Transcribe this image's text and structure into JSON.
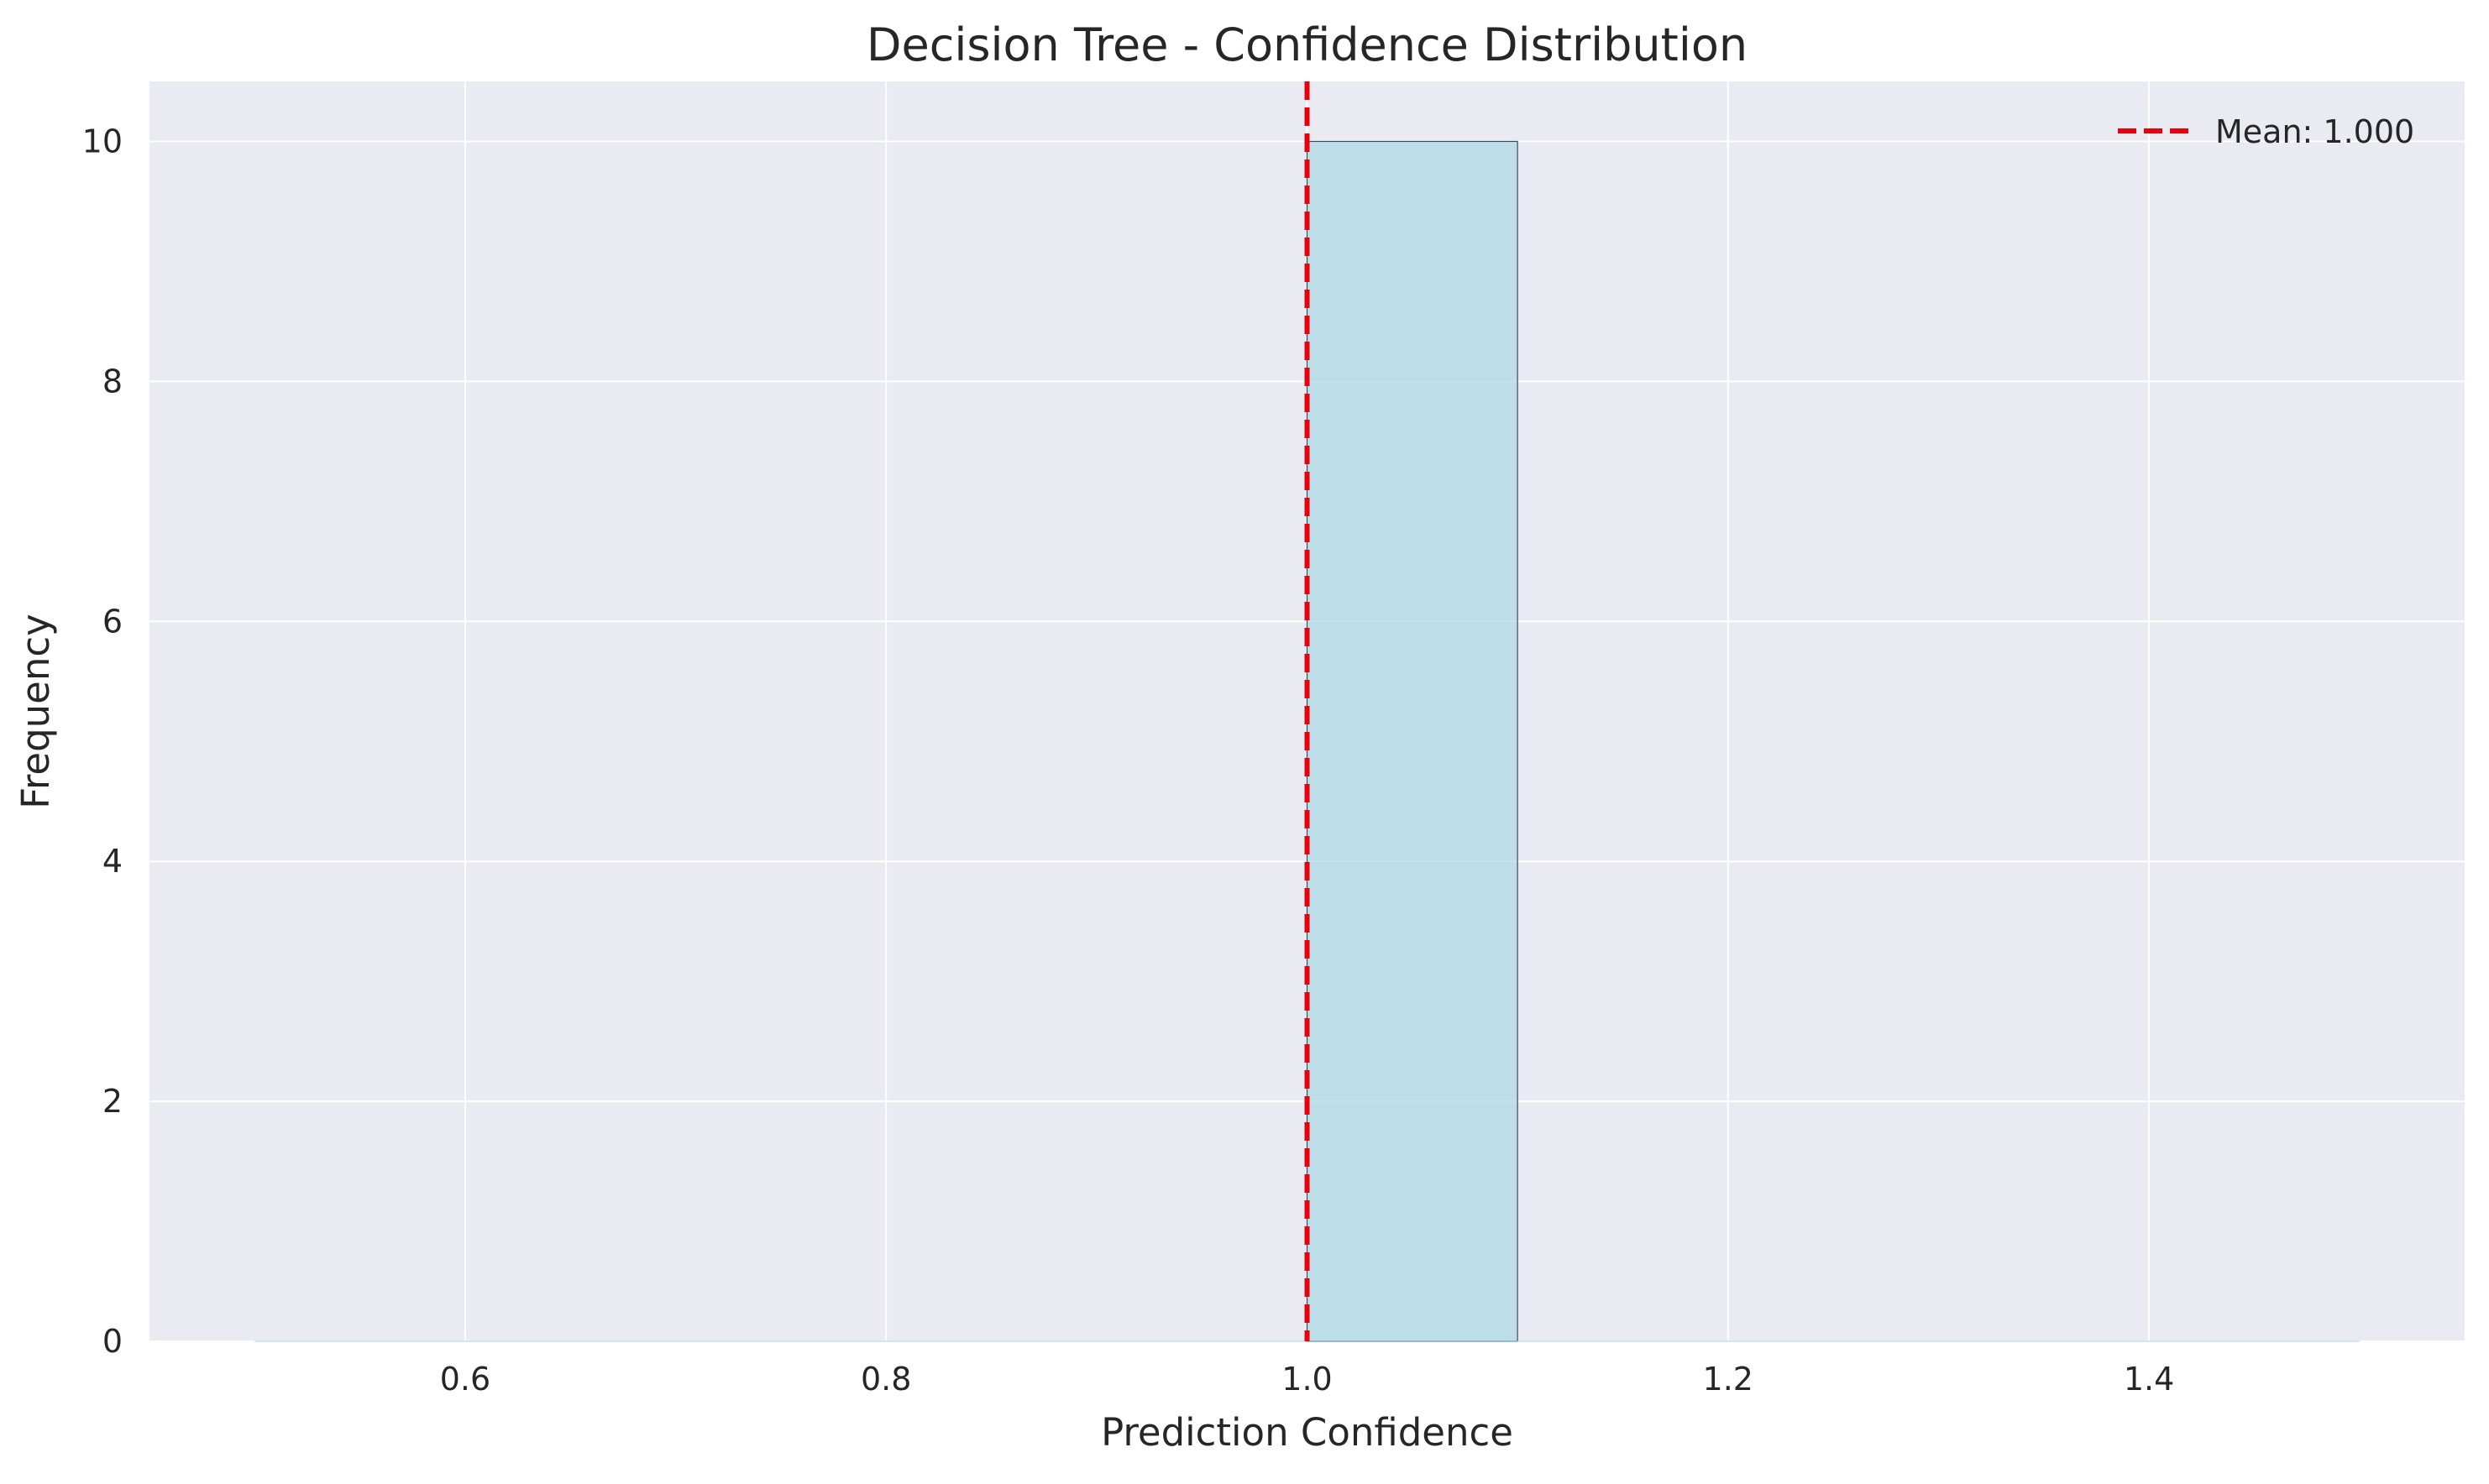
{
  "chart_data": {
    "type": "bar",
    "title": "Decision Tree - Confidence Distribution",
    "xlabel": "Prediction Confidence",
    "ylabel": "Frequency",
    "xlim": [
      0.45,
      1.55
    ],
    "ylim": [
      0,
      10.5
    ],
    "x_ticks": [
      "0.6",
      "0.8",
      "1.0",
      "1.2",
      "1.4"
    ],
    "x_tick_values": [
      0.6,
      0.8,
      1.0,
      1.2,
      1.4
    ],
    "y_ticks": [
      "0",
      "2",
      "4",
      "6",
      "8",
      "10"
    ],
    "y_tick_values": [
      0,
      2,
      4,
      6,
      8,
      10
    ],
    "bins": [
      {
        "start": 0.5,
        "end": 0.6,
        "count": 0
      },
      {
        "start": 0.6,
        "end": 0.7,
        "count": 0
      },
      {
        "start": 0.7,
        "end": 0.8,
        "count": 0
      },
      {
        "start": 0.8,
        "end": 0.9,
        "count": 0
      },
      {
        "start": 0.9,
        "end": 1.0,
        "count": 0
      },
      {
        "start": 1.0,
        "end": 1.1,
        "count": 10
      },
      {
        "start": 1.1,
        "end": 1.2,
        "count": 0
      },
      {
        "start": 1.2,
        "end": 1.3,
        "count": 0
      },
      {
        "start": 1.3,
        "end": 1.4,
        "count": 0
      },
      {
        "start": 1.4,
        "end": 1.5,
        "count": 0
      }
    ],
    "mean": 1.0,
    "legend": {
      "label": "Mean: 1.000",
      "placement": "top-right"
    },
    "grid": true,
    "colors": {
      "background": "#eaeaf2",
      "bar_fill": "#add8e6",
      "bar_edge": "#3b4a5a",
      "mean_line": "#e8000b",
      "grid": "#ffffff"
    }
  }
}
